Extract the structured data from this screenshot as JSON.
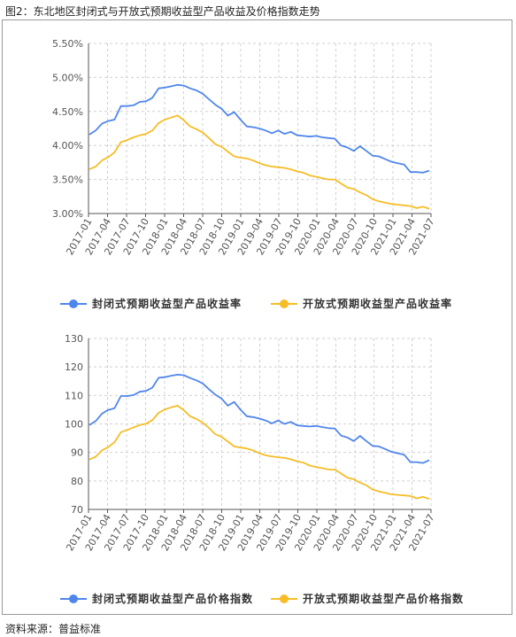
{
  "figure_title": "图2：东北地区封闭式与开放式预期收益型产品收益及价格指数走势",
  "source": "资料来源：普益标准",
  "colors": {
    "closed": "#4f86ec",
    "open": "#f6bd27",
    "grid": "#d0d0d0",
    "axis": "#555555"
  },
  "categories": [
    "2017-01",
    "2017-04",
    "2017-07",
    "2017-10",
    "2018-01",
    "2018-04",
    "2018-07",
    "2018-10",
    "2019-01",
    "2019-04",
    "2019-07",
    "2019-10",
    "2020-01",
    "2020-04",
    "2020-07",
    "2020-10",
    "2021-01",
    "2021-04",
    "2021-07"
  ],
  "chart_data": [
    {
      "type": "line",
      "title": "",
      "ylim": [
        3.0,
        5.5
      ],
      "yticks": [
        "3.00%",
        "3.50%",
        "4.00%",
        "4.50%",
        "5.00%",
        "5.50%"
      ],
      "ytick_values": [
        3.0,
        3.5,
        4.0,
        4.5,
        5.0,
        5.5
      ],
      "legend_position": "bottom",
      "series": [
        {
          "name": "封闭式预期收益型产品收益率",
          "color": "#4f86ec",
          "values": [
            4.16,
            4.22,
            4.32,
            4.36,
            4.38,
            4.58,
            4.58,
            4.59,
            4.64,
            4.65,
            4.7,
            4.84,
            4.85,
            4.87,
            4.89,
            4.88,
            4.84,
            4.81,
            4.76,
            4.68,
            4.6,
            4.54,
            4.44,
            4.49,
            4.38,
            4.28,
            4.27,
            4.25,
            4.22,
            4.18,
            4.22,
            4.17,
            4.2,
            4.15,
            4.14,
            4.13,
            4.14,
            4.12,
            4.11,
            4.1,
            4.0,
            3.97,
            3.92,
            3.99,
            3.92,
            3.85,
            3.84,
            3.8,
            3.76,
            3.74,
            3.72,
            3.61,
            3.61,
            3.6,
            3.63
          ]
        },
        {
          "name": "开放式预期收益型产品收益率",
          "color": "#f6bd27",
          "values": [
            3.65,
            3.69,
            3.78,
            3.83,
            3.9,
            4.05,
            4.08,
            4.12,
            4.15,
            4.17,
            4.22,
            4.33,
            4.38,
            4.41,
            4.44,
            4.37,
            4.28,
            4.24,
            4.19,
            4.11,
            4.02,
            3.98,
            3.91,
            3.84,
            3.82,
            3.81,
            3.78,
            3.74,
            3.71,
            3.69,
            3.68,
            3.67,
            3.65,
            3.62,
            3.6,
            3.56,
            3.54,
            3.52,
            3.5,
            3.5,
            3.44,
            3.38,
            3.36,
            3.31,
            3.27,
            3.21,
            3.18,
            3.16,
            3.14,
            3.13,
            3.12,
            3.11,
            3.08,
            3.1,
            3.07
          ]
        }
      ]
    },
    {
      "type": "line",
      "title": "",
      "ylim": [
        70,
        130
      ],
      "yticks": [
        "70",
        "80",
        "90",
        "100",
        "110",
        "120",
        "130"
      ],
      "ytick_values": [
        70,
        80,
        90,
        100,
        110,
        120,
        130
      ],
      "legend_position": "bottom",
      "series": [
        {
          "name": "封闭式预期收益型产品价格指数",
          "color": "#4f86ec",
          "values": [
            99.6,
            101.0,
            103.6,
            104.9,
            105.5,
            109.8,
            109.8,
            110.1,
            111.3,
            111.6,
            112.7,
            116.2,
            116.4,
            116.9,
            117.3,
            117.1,
            116.1,
            115.3,
            114.2,
            112.2,
            110.3,
            108.9,
            106.4,
            107.7,
            105.0,
            102.7,
            102.4,
            101.9,
            101.2,
            100.2,
            101.2,
            100.0,
            100.7,
            99.5,
            99.3,
            99.1,
            99.3,
            98.9,
            98.5,
            98.4,
            95.9,
            95.2,
            94.0,
            95.8,
            94.0,
            92.3,
            92.1,
            91.2,
            90.2,
            89.7,
            89.2,
            86.6,
            86.6,
            86.3,
            87.3
          ]
        },
        {
          "name": "开放式预期收益型产品价格指数",
          "color": "#f6bd27",
          "values": [
            87.5,
            88.5,
            90.7,
            91.9,
            93.6,
            97.1,
            97.9,
            98.8,
            99.6,
            100.1,
            101.3,
            103.9,
            105.1,
            105.8,
            106.4,
            104.8,
            102.7,
            101.7,
            100.5,
            98.6,
            96.4,
            95.5,
            93.8,
            92.1,
            91.7,
            91.4,
            90.7,
            89.7,
            89.0,
            88.6,
            88.3,
            88.1,
            87.6,
            86.9,
            86.4,
            85.4,
            84.9,
            84.5,
            84.0,
            84.0,
            82.6,
            81.1,
            80.6,
            79.4,
            78.5,
            77.0,
            76.3,
            75.8,
            75.3,
            75.1,
            74.9,
            74.7,
            73.9,
            74.4,
            73.7
          ]
        }
      ]
    }
  ]
}
